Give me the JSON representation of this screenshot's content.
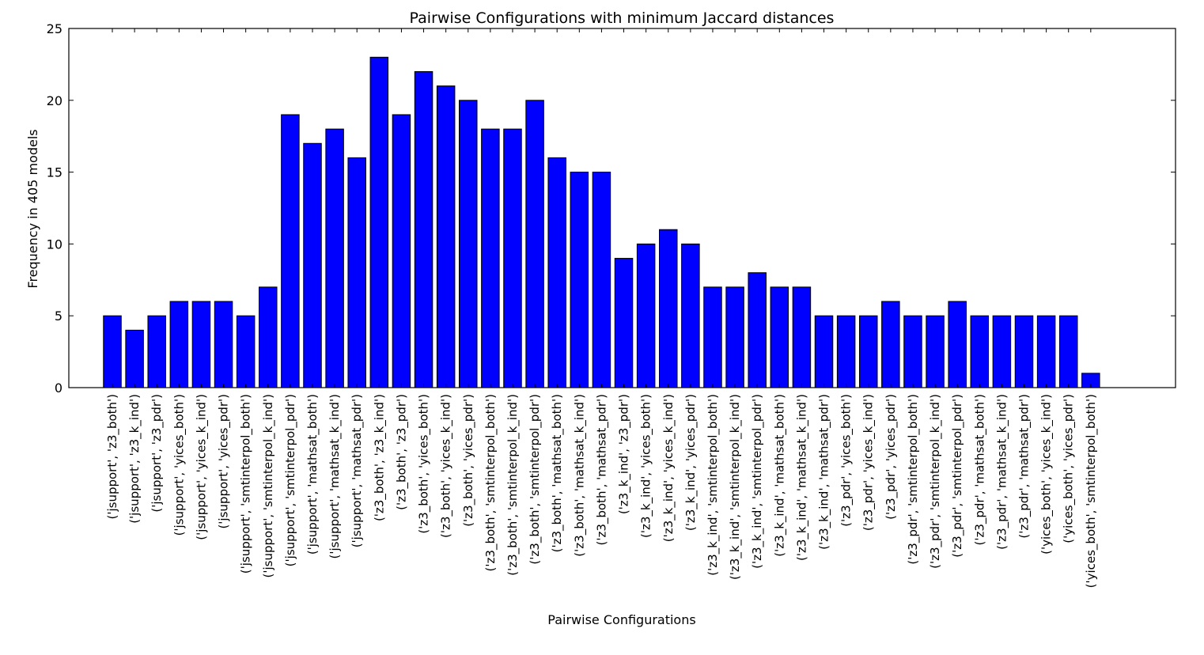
{
  "chart_data": {
    "type": "bar",
    "title": "Pairwise Configurations with minimum Jaccard distances",
    "xlabel": "Pairwise Configurations",
    "ylabel": "Frequency in 405 models",
    "ylim": [
      0,
      25
    ],
    "yticks": [
      0,
      5,
      10,
      15,
      20,
      25
    ],
    "grid": false,
    "bar_color": "#0000ff",
    "categories": [
      "('jsupport', 'z3_both')",
      "('jsupport', 'z3_k_ind')",
      "('jsupport', 'z3_pdr')",
      "('jsupport', 'yices_both')",
      "('jsupport', 'yices_k_ind')",
      "('jsupport', 'yices_pdr')",
      "('jsupport', 'smtinterpol_both')",
      "('jsupport', 'smtinterpol_k_ind')",
      "('jsupport', 'smtinterpol_pdr')",
      "('jsupport', 'mathsat_both')",
      "('jsupport', 'mathsat_k_ind')",
      "('jsupport', 'mathsat_pdr')",
      "('z3_both', 'z3_k_ind')",
      "('z3_both', 'z3_pdr')",
      "('z3_both', 'yices_both')",
      "('z3_both', 'yices_k_ind')",
      "('z3_both', 'yices_pdr')",
      "('z3_both', 'smtinterpol_both')",
      "('z3_both', 'smtinterpol_k_ind')",
      "('z3_both', 'smtinterpol_pdr')",
      "('z3_both', 'mathsat_both')",
      "('z3_both', 'mathsat_k_ind')",
      "('z3_both', 'mathsat_pdr')",
      "('z3_k_ind', 'z3_pdr')",
      "('z3_k_ind', 'yices_both')",
      "('z3_k_ind', 'yices_k_ind')",
      "('z3_k_ind', 'yices_pdr')",
      "('z3_k_ind', 'smtinterpol_both')",
      "('z3_k_ind', 'smtinterpol_k_ind')",
      "('z3_k_ind', 'smtinterpol_pdr')",
      "('z3_k_ind', 'mathsat_both')",
      "('z3_k_ind', 'mathsat_k_ind')",
      "('z3_k_ind', 'mathsat_pdr')",
      "('z3_pdr', 'yices_both')",
      "('z3_pdr', 'yices_k_ind')",
      "('z3_pdr', 'yices_pdr')",
      "('z3_pdr', 'smtinterpol_both')",
      "('z3_pdr', 'smtinterpol_k_ind')",
      "('z3_pdr', 'smtinterpol_pdr')",
      "('z3_pdr', 'mathsat_both')",
      "('z3_pdr', 'mathsat_k_ind')",
      "('z3_pdr', 'mathsat_pdr')",
      "('yices_both', 'yices_k_ind')",
      "('yices_both', 'yices_pdr')",
      "('yices_both', 'smtinterpol_both')"
    ],
    "values": [
      5,
      4,
      5,
      6,
      6,
      6,
      5,
      7,
      19,
      17,
      18,
      16,
      23,
      19,
      22,
      21,
      20,
      18,
      18,
      20,
      16,
      15,
      15,
      9,
      10,
      11,
      10,
      7,
      7,
      8,
      7,
      7,
      5,
      5,
      5,
      6,
      5,
      5,
      6,
      5,
      5,
      5,
      5,
      5,
      1
    ]
  }
}
